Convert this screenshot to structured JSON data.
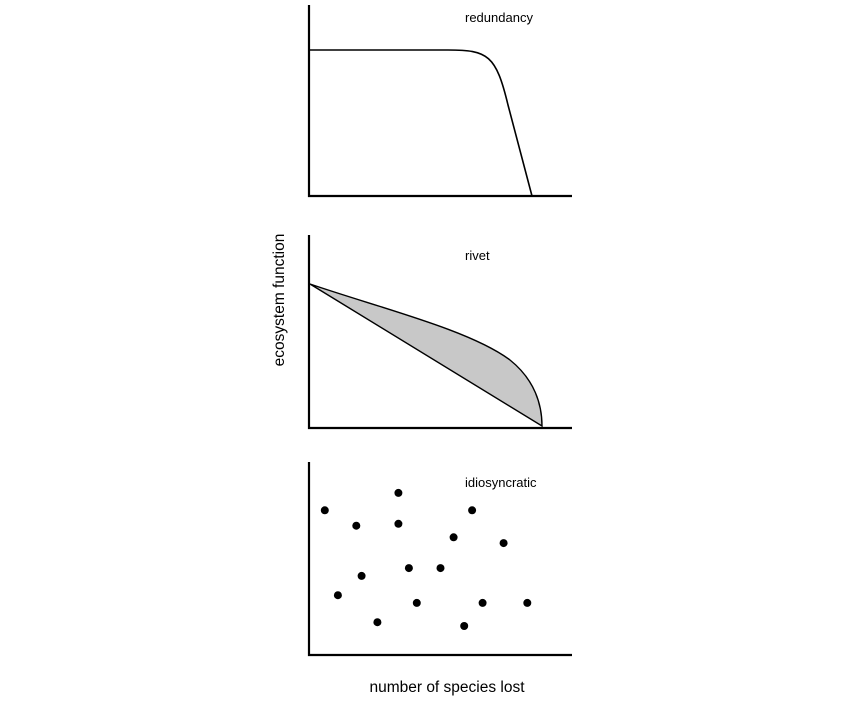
{
  "panels": [
    {
      "label": "redundancy",
      "type": "line"
    },
    {
      "label": "rivet",
      "type": "area"
    },
    {
      "label": "idiosyncratic",
      "type": "scatter",
      "points": [
        [
          0.06,
          0.75
        ],
        [
          0.18,
          0.67
        ],
        [
          0.34,
          0.84
        ],
        [
          0.34,
          0.68
        ],
        [
          0.62,
          0.75
        ],
        [
          0.55,
          0.61
        ],
        [
          0.74,
          0.58
        ],
        [
          0.2,
          0.41
        ],
        [
          0.38,
          0.45
        ],
        [
          0.5,
          0.45
        ],
        [
          0.11,
          0.31
        ],
        [
          0.41,
          0.27
        ],
        [
          0.66,
          0.27
        ],
        [
          0.83,
          0.27
        ],
        [
          0.26,
          0.17
        ],
        [
          0.59,
          0.15
        ]
      ]
    }
  ],
  "axes": {
    "ylabel": "ecosystem function",
    "xlabel": "number of species lost"
  },
  "colors": {
    "ink": "#000000",
    "fill": "#c8c8c8"
  }
}
